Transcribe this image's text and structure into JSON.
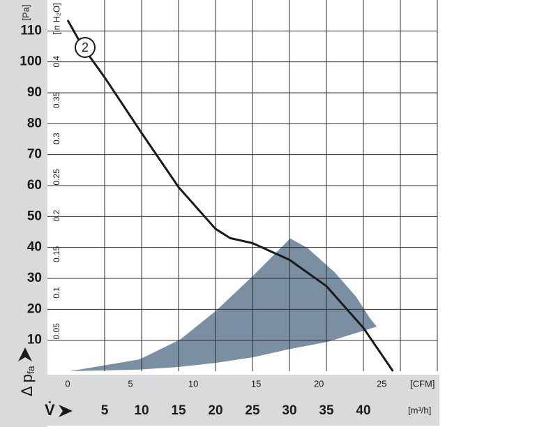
{
  "chart_data": {
    "type": "line",
    "y_unit_label": "[Pa]",
    "y2_unit_label": "[in H₂O]",
    "x_unit_label": "[m³/h]",
    "x2_unit_label": "[CFM]",
    "y_label": "Δ p",
    "y_label_sub": "fa",
    "x_label": "V̇",
    "xlim": [
      0,
      50
    ],
    "xticks": [
      5,
      10,
      15,
      20,
      25,
      30,
      35,
      40,
      {
        "value": 45,
        "label": null
      }
    ],
    "x2lim": [
      0,
      29.43
    ],
    "x2ticks": [
      0,
      5,
      10,
      15,
      20,
      25
    ],
    "ylim": [
      0,
      120
    ],
    "yticks": [
      10,
      20,
      30,
      40,
      50,
      60,
      70,
      80,
      90,
      100,
      110
    ],
    "y2lim": [
      0,
      0.4817
    ],
    "y2ticks": [
      0.05,
      0.1,
      0.15,
      0.2,
      0.25,
      0.3,
      0.35,
      0.4
    ],
    "grid": true,
    "series": [
      {
        "label": "2",
        "color": "#1a1a1a",
        "x": [
          0,
          2,
          5,
          10,
          15,
          20,
          22,
          25,
          30,
          35,
          40,
          44
        ],
        "values": [
          113.5,
          105,
          95,
          77,
          59.5,
          46,
          43,
          41.4,
          36,
          27.5,
          14,
          0
        ]
      }
    ],
    "region": {
      "color": "#7b8fa3",
      "x": [
        0.3,
        9.7,
        15.2,
        20.1,
        25.1,
        30.1,
        32.4,
        36.1,
        39,
        40.8,
        41.8,
        35.2,
        30.1,
        25.1,
        20.1,
        15.2,
        9.7
      ],
      "y": [
        0,
        3.8,
        10.2,
        19.6,
        30.9,
        42.9,
        39.9,
        32,
        24.1,
        17.4,
        14.4,
        9.5,
        7.2,
        4.5,
        2.7,
        1.4,
        0.5
      ]
    }
  }
}
